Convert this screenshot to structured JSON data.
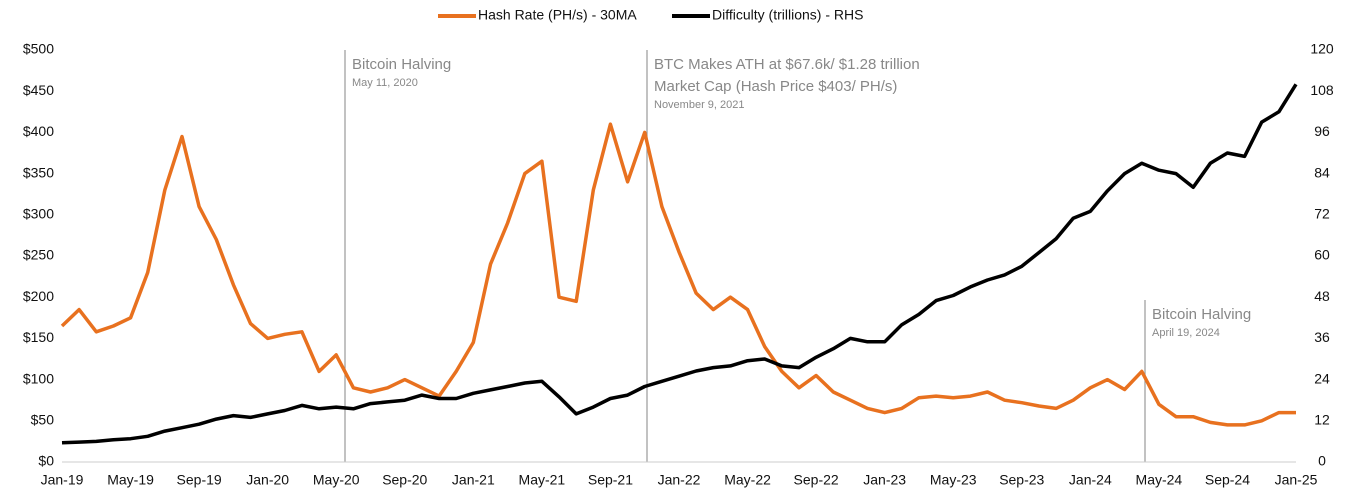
{
  "chart_data": {
    "type": "line",
    "categories": [
      "Jan-19",
      null,
      null,
      null,
      "May-19",
      null,
      null,
      null,
      "Sep-19",
      null,
      null,
      null,
      "Jan-20",
      null,
      null,
      null,
      "May-20",
      null,
      null,
      null,
      "Sep-20",
      null,
      null,
      null,
      "Jan-21",
      null,
      null,
      null,
      "May-21",
      null,
      null,
      null,
      "Sep-21",
      null,
      null,
      null,
      "Jan-22",
      null,
      null,
      null,
      "May-22",
      null,
      null,
      null,
      "Sep-22",
      null,
      null,
      null,
      "Jan-23",
      null,
      null,
      null,
      "May-23",
      null,
      null,
      null,
      "Sep-23",
      null,
      null,
      null,
      "Jan-24",
      null,
      null,
      null,
      "May-24",
      null,
      null,
      null,
      "Sep-24",
      null,
      null,
      null,
      "Jan-25"
    ],
    "series": [
      {
        "name": "Hash Rate (PH/s) - 30MA",
        "color": "#e8711f",
        "values": [
          165,
          185,
          158,
          165,
          175,
          230,
          330,
          395,
          310,
          270,
          215,
          168,
          150,
          155,
          158,
          110,
          130,
          90,
          85,
          90,
          100,
          90,
          80,
          110,
          145,
          240,
          290,
          350,
          365,
          200,
          195,
          330,
          410,
          340,
          400,
          310,
          255,
          205,
          185,
          200,
          185,
          140,
          110,
          90,
          105,
          85,
          75,
          65,
          60,
          65,
          78,
          80,
          78,
          80,
          85,
          75,
          72,
          68,
          65,
          75,
          90,
          100,
          88,
          110,
          70,
          55,
          55,
          48,
          45,
          45,
          50,
          60,
          60
        ]
      },
      {
        "name": "Difficulty (trillions) - RHS",
        "color": "#000000",
        "axis": "y2",
        "values": [
          5.6,
          5.8,
          6,
          6.5,
          6.8,
          7.5,
          9,
          10,
          11,
          12.5,
          13.5,
          13,
          14,
          15,
          16.5,
          15.5,
          16,
          15.5,
          17,
          17.5,
          18,
          19.5,
          18.5,
          18.5,
          20,
          21,
          22,
          23,
          23.5,
          19,
          14,
          16,
          18.5,
          19.5,
          22,
          23.5,
          25,
          26.5,
          27.5,
          28,
          29.5,
          30,
          28,
          27.5,
          30.5,
          33,
          36,
          35,
          35,
          40,
          43,
          47,
          48.5,
          51,
          53,
          54.5,
          57,
          61,
          65,
          71,
          73,
          79,
          84,
          87,
          85,
          84,
          80,
          87,
          90,
          89,
          99,
          102,
          110
        ]
      }
    ],
    "ylim": [
      0,
      500
    ],
    "yticks": [
      {
        "value": 0,
        "label": "$0"
      },
      {
        "value": 50,
        "label": "$50"
      },
      {
        "value": 100,
        "label": "$100"
      },
      {
        "value": 150,
        "label": "$150"
      },
      {
        "value": 200,
        "label": "$200"
      },
      {
        "value": 250,
        "label": "$250"
      },
      {
        "value": 300,
        "label": "$300"
      },
      {
        "value": 350,
        "label": "$350"
      },
      {
        "value": 400,
        "label": "$400"
      },
      {
        "value": 450,
        "label": "$450"
      },
      {
        "value": 500,
        "label": "$500"
      }
    ],
    "y2lim": [
      0,
      120
    ],
    "y2ticks": [
      0,
      12,
      24,
      36,
      48,
      60,
      72,
      84,
      96,
      108,
      120
    ],
    "annotations": [
      {
        "title": [
          "Bitcoin Halving"
        ],
        "date": "May 11, 2020"
      },
      {
        "title": [
          "BTC Makes ATH at $67.6k/ $1.28 trillion",
          "Market Cap (Hash Price $403/ PH/s)"
        ],
        "date": "November 9, 2021"
      },
      {
        "title": [
          "Bitcoin Halving"
        ],
        "date": "April 19, 2024"
      }
    ]
  }
}
